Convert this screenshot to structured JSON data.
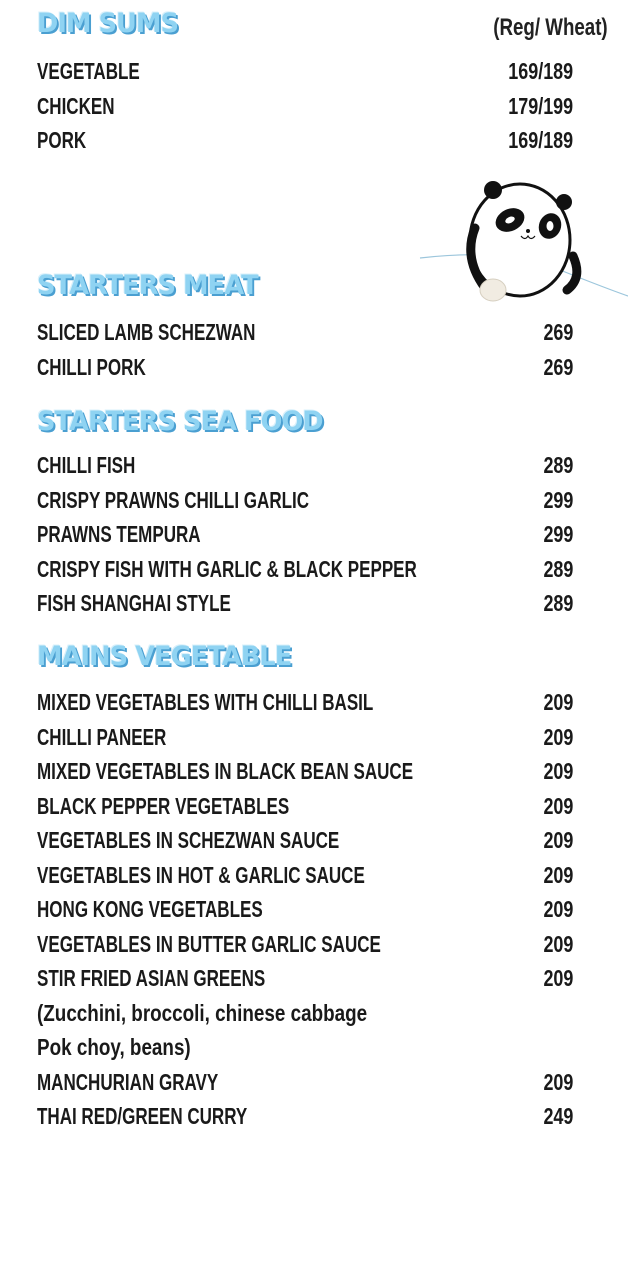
{
  "sections": [
    {
      "title": "DIM SUMS",
      "subtitle": "(Reg/ Wheat)",
      "items": [
        {
          "name": "VEGETABLE",
          "price": "169/189"
        },
        {
          "name": "CHICKEN",
          "price": "179/199"
        },
        {
          "name": "PORK",
          "price": "169/189"
        }
      ]
    },
    {
      "title": "STARTERS MEAT",
      "items": [
        {
          "name": "SLICED LAMB SCHEZWAN",
          "price": "269"
        },
        {
          "name": "CHILLI PORK",
          "price": "269"
        }
      ]
    },
    {
      "title": "STARTERS SEA FOOD",
      "items": [
        {
          "name": "CHILLI FISH",
          "price": "289"
        },
        {
          "name": "CRISPY PRAWNS CHILLI GARLIC",
          "price": "299"
        },
        {
          "name": "PRAWNS TEMPURA",
          "price": "299"
        },
        {
          "name": "CRISPY FISH WITH GARLIC & BLACK PEPPER",
          "price": "289"
        },
        {
          "name": "FISH SHANGHAI STYLE",
          "price": "289"
        }
      ]
    },
    {
      "title": "MAINS VEGETABLE",
      "items": [
        {
          "name": "MIXED VEGETABLES WITH CHILLI BASIL",
          "price": "209"
        },
        {
          "name": "CHILLI PANEER",
          "price": "209"
        },
        {
          "name": "MIXED VEGETABLES IN BLACK BEAN SAUCE",
          "price": "209"
        },
        {
          "name": "BLACK PEPPER VEGETABLES",
          "price": "209"
        },
        {
          "name": "VEGETABLES IN SCHEZWAN SAUCE",
          "price": "209"
        },
        {
          "name": "VEGETABLES IN HOT & GARLIC SAUCE",
          "price": "209"
        },
        {
          "name": "HONG KONG VEGETABLES",
          "price": "209"
        },
        {
          "name": "VEGETABLES IN BUTTER GARLIC SAUCE",
          "price": "209"
        },
        {
          "name": "STIR FRIED ASIAN GREENS",
          "price": "209"
        },
        {
          "name": "(Zucchini, broccoli, chinese cabbage",
          "price": "",
          "note": true
        },
        {
          "name": "Pok choy, beans)",
          "price": "",
          "note": true
        },
        {
          "name": "MANCHURIAN GRAVY",
          "price": "209"
        },
        {
          "name": "THAI RED/GREEN CURRY",
          "price": "249"
        }
      ]
    }
  ],
  "colors": {
    "heading": "#8fd3f2",
    "heading_shadow": "#4a9fd1",
    "text": "#1a1a1a"
  },
  "illustration": "panda-holding-dumpling"
}
